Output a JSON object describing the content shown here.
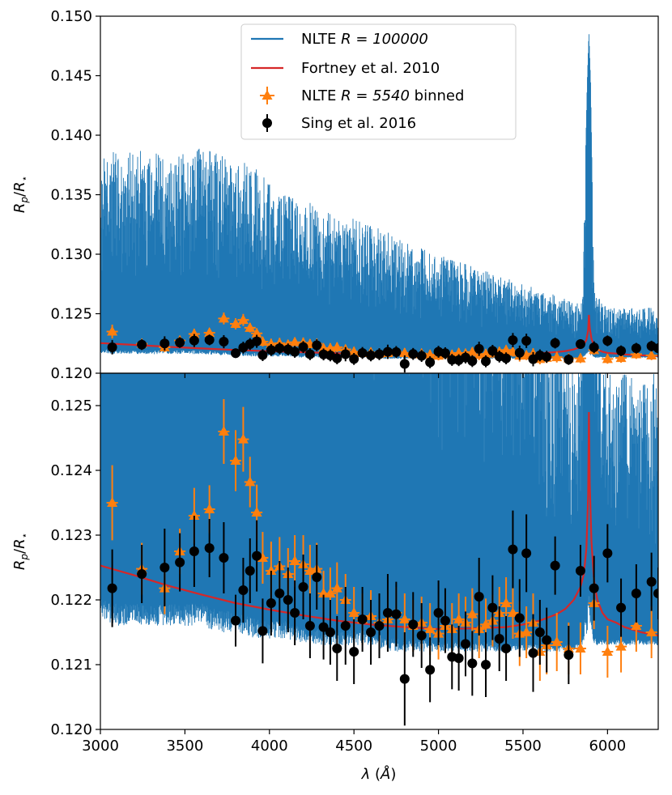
{
  "chart_data": {
    "type": "line",
    "xlabel": "λ (Å)",
    "xlim": [
      3000,
      6300
    ],
    "x_ticks": [
      3000,
      3500,
      4000,
      4500,
      5000,
      5500,
      6000
    ],
    "legend": {
      "placement": "upper-center",
      "entries": [
        {
          "kind": "line",
          "text_plain": "NLTE ",
          "text_math": "R = 100000",
          "text_tail": "",
          "color": "#1f77b4"
        },
        {
          "kind": "line",
          "text_plain": "Fortney et al. 2010",
          "text_math": "",
          "text_tail": "",
          "color": "#d62728"
        },
        {
          "kind": "triangle",
          "text_plain": "NLTE ",
          "text_math": "R = 5540",
          "text_tail": " binned",
          "color": "#ff7f0e"
        },
        {
          "kind": "circle",
          "text_plain": "Sing et al. 2016",
          "text_math": "",
          "text_tail": "",
          "color": "#000000"
        }
      ]
    },
    "panels": [
      {
        "name": "top",
        "ylabel": "Rp/R⋆",
        "ylim": [
          0.12,
          0.15
        ],
        "y_ticks": [
          "0.120",
          "0.125",
          "0.130",
          "0.135",
          "0.140",
          "0.145",
          "0.150"
        ]
      },
      {
        "name": "bottom",
        "ylabel": "Rp/R⋆",
        "ylim": [
          0.12,
          0.1255
        ],
        "y_ticks": [
          "0.120",
          "0.121",
          "0.122",
          "0.123",
          "0.124",
          "0.125"
        ]
      }
    ],
    "series": [
      {
        "name": "NLTE R = 100000",
        "color": "#1f77b4",
        "envelope_x": [
          3000,
          3100,
          3200,
          3300,
          3400,
          3500,
          3600,
          3700,
          3800,
          3900,
          4000,
          4100,
          4200,
          4300,
          4400,
          4500,
          4600,
          4700,
          4800,
          4900,
          5000,
          5100,
          5200,
          5300,
          5400,
          5500,
          5600,
          5700,
          5800,
          5850,
          5880,
          5890,
          5900,
          5920,
          5950,
          6000,
          6100,
          6200,
          6300
        ],
        "envelope_upper": [
          0.138,
          0.139,
          0.1385,
          0.139,
          0.138,
          0.1385,
          0.139,
          0.1385,
          0.138,
          0.1375,
          0.136,
          0.135,
          0.1345,
          0.134,
          0.133,
          0.133,
          0.1325,
          0.132,
          0.131,
          0.1305,
          0.13,
          0.1295,
          0.129,
          0.1285,
          0.128,
          0.1275,
          0.127,
          0.1265,
          0.126,
          0.126,
          0.1445,
          0.1487,
          0.1445,
          0.127,
          0.1265,
          0.1255,
          0.1255,
          0.1255,
          0.1255
        ],
        "envelope_lower": [
          0.1217,
          0.1216,
          0.1216,
          0.1216,
          0.1216,
          0.1216,
          0.1216,
          0.1215,
          0.1215,
          0.1214,
          0.1214,
          0.1214,
          0.1213,
          0.1213,
          0.1213,
          0.1213,
          0.1213,
          0.1212,
          0.1212,
          0.1212,
          0.1212,
          0.1212,
          0.1212,
          0.1212,
          0.1212,
          0.1212,
          0.1212,
          0.1212,
          0.1212,
          0.1213,
          0.1215,
          0.1216,
          0.1215,
          0.1213,
          0.1213,
          0.1213,
          0.1213,
          0.1213,
          0.1213
        ]
      },
      {
        "name": "Fortney et al. 2010",
        "color": "#d62728",
        "x": [
          3000,
          3200,
          3400,
          3600,
          3800,
          4000,
          4200,
          4400,
          4600,
          4800,
          5000,
          5200,
          5400,
          5500,
          5600,
          5700,
          5750,
          5800,
          5840,
          5860,
          5875,
          5885,
          5890,
          5895,
          5905,
          5920,
          5940,
          5970,
          6000,
          6050,
          6100,
          6200,
          6300
        ],
        "y": [
          0.12253,
          0.12238,
          0.12222,
          0.12208,
          0.12195,
          0.12185,
          0.12176,
          0.12168,
          0.12162,
          0.12158,
          0.12155,
          0.12156,
          0.12158,
          0.12162,
          0.12168,
          0.12178,
          0.12186,
          0.122,
          0.1222,
          0.1224,
          0.1228,
          0.1236,
          0.1249,
          0.1238,
          0.1229,
          0.1223,
          0.122,
          0.1218,
          0.1217,
          0.12165,
          0.12158,
          0.1215,
          0.12145
        ]
      },
      {
        "name": "NLTE R = 5540 binned",
        "color": "#ff7f0e",
        "x": [
          3070,
          3245,
          3380,
          3470,
          3555,
          3645,
          3730,
          3800,
          3845,
          3885,
          3925,
          3960,
          4010,
          4060,
          4110,
          4150,
          4200,
          4240,
          4280,
          4320,
          4360,
          4400,
          4450,
          4500,
          4550,
          4600,
          4650,
          4700,
          4750,
          4800,
          4850,
          4900,
          4950,
          5000,
          5040,
          5080,
          5120,
          5160,
          5200,
          5240,
          5280,
          5320,
          5360,
          5400,
          5440,
          5480,
          5520,
          5560,
          5600,
          5640,
          5700,
          5770,
          5840,
          5920,
          6000,
          6080,
          6170,
          6260
        ],
        "y": [
          0.1235,
          0.12248,
          0.12218,
          0.12275,
          0.1233,
          0.1234,
          0.1246,
          0.12415,
          0.12448,
          0.12382,
          0.12335,
          0.12265,
          0.12245,
          0.12252,
          0.1224,
          0.1226,
          0.12255,
          0.12245,
          0.12248,
          0.1221,
          0.1221,
          0.12218,
          0.122,
          0.1218,
          0.1217,
          0.12175,
          0.12165,
          0.1217,
          0.1218,
          0.1217,
          0.1216,
          0.12165,
          0.12155,
          0.12148,
          0.1216,
          0.12155,
          0.1217,
          0.12165,
          0.12178,
          0.12155,
          0.12162,
          0.12168,
          0.1218,
          0.12195,
          0.1218,
          0.12148,
          0.1215,
          0.12165,
          0.1212,
          0.1213,
          0.12135,
          0.12125,
          0.12125,
          0.12195,
          0.1212,
          0.12128,
          0.1216,
          0.1215
        ],
        "yerr": [
          0.00058,
          0.0004,
          0.0004,
          0.00035,
          0.00043,
          0.00037,
          0.0005,
          0.00047,
          0.0005,
          0.00039,
          0.00043,
          0.0004,
          0.00045,
          0.00045,
          0.0004,
          0.0004,
          0.00045,
          0.0004,
          0.0004,
          0.00035,
          0.0004,
          0.0004,
          0.0004,
          0.0004,
          0.0004,
          0.0004,
          0.0004,
          0.00045,
          0.0004,
          0.0004,
          0.0004,
          0.0004,
          0.0004,
          0.0004,
          0.0004,
          0.0004,
          0.0004,
          0.0004,
          0.0004,
          0.00045,
          0.0004,
          0.0004,
          0.0004,
          0.0004,
          0.0004,
          0.0005,
          0.0004,
          0.00045,
          0.00045,
          0.00045,
          0.00045,
          0.0004,
          0.0004,
          0.0004,
          0.0004,
          0.0004,
          0.0004,
          0.0004
        ]
      },
      {
        "name": "Sing et al. 2016",
        "color": "#000000",
        "x": [
          3070,
          3245,
          3380,
          3470,
          3555,
          3645,
          3730,
          3800,
          3845,
          3885,
          3925,
          3960,
          4010,
          4060,
          4110,
          4150,
          4200,
          4240,
          4280,
          4320,
          4360,
          4400,
          4450,
          4500,
          4550,
          4600,
          4650,
          4700,
          4750,
          4800,
          4850,
          4900,
          4950,
          5000,
          5040,
          5080,
          5120,
          5160,
          5200,
          5240,
          5280,
          5320,
          5360,
          5400,
          5440,
          5480,
          5520,
          5560,
          5600,
          5640,
          5690,
          5770,
          5840,
          5920,
          6000,
          6080,
          6170,
          6260,
          6300
        ],
        "y": [
          0.12218,
          0.1224,
          0.1225,
          0.12258,
          0.12275,
          0.1228,
          0.12265,
          0.12168,
          0.12215,
          0.12245,
          0.12268,
          0.12152,
          0.12195,
          0.1221,
          0.122,
          0.1218,
          0.1222,
          0.1216,
          0.12235,
          0.12158,
          0.1215,
          0.12125,
          0.1216,
          0.1212,
          0.1217,
          0.1215,
          0.1216,
          0.1218,
          0.12178,
          0.12078,
          0.12162,
          0.12145,
          0.12092,
          0.1218,
          0.12168,
          0.12112,
          0.1211,
          0.12132,
          0.12102,
          0.12205,
          0.121,
          0.12188,
          0.1214,
          0.12125,
          0.12278,
          0.12172,
          0.12272,
          0.12118,
          0.1215,
          0.12138,
          0.12253,
          0.12115,
          0.12245,
          0.12218,
          0.12272,
          0.12188,
          0.1221,
          0.12228,
          0.1221
        ],
        "yerr": [
          0.0006,
          0.00045,
          0.0006,
          0.00045,
          0.00055,
          0.00045,
          0.00055,
          0.0004,
          0.0005,
          0.0005,
          0.00055,
          0.0005,
          0.0005,
          0.0005,
          0.0005,
          0.0005,
          0.0005,
          0.0005,
          0.0005,
          0.0005,
          0.0005,
          0.0005,
          0.0006,
          0.0005,
          0.0005,
          0.0005,
          0.0005,
          0.0006,
          0.0005,
          0.00072,
          0.0005,
          0.0005,
          0.0005,
          0.0005,
          0.0005,
          0.0005,
          0.0005,
          0.0005,
          0.0005,
          0.0006,
          0.0005,
          0.0005,
          0.0005,
          0.0005,
          0.0006,
          0.0006,
          0.0006,
          0.0006,
          0.0005,
          0.0005,
          0.00045,
          0.00045,
          0.0004,
          0.0005,
          0.00045,
          0.00045,
          0.00045,
          0.00045,
          0.0004
        ]
      }
    ]
  }
}
